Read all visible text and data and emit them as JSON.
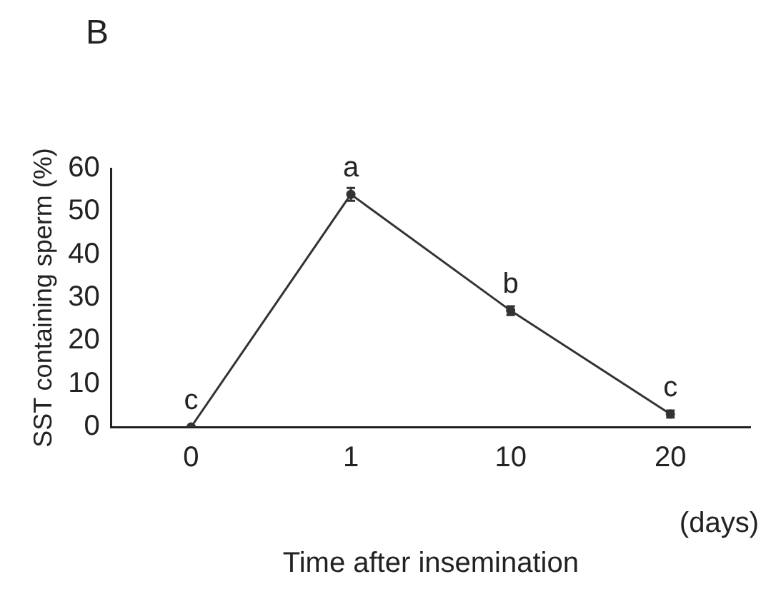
{
  "chart_data": {
    "type": "line",
    "title": "B",
    "xlabel": "Time after insemination",
    "ylabel": "SST containing sperm (%)",
    "categories": [
      "0",
      "1",
      "10",
      "20"
    ],
    "series": [
      {
        "color": "#333333",
        "values": [
          0,
          54,
          27,
          3
        ],
        "errors": [
          null,
          1.5,
          1,
          0.8
        ]
      }
    ],
    "ylim": [
      0,
      60
    ],
    "yticks": [
      0,
      10,
      20,
      30,
      40,
      50,
      60
    ],
    "grid": false,
    "legend": false,
    "marker": "circle",
    "line_style": "solid",
    "annotations": [
      {
        "text": "c",
        "x": "0",
        "y": 0
      },
      {
        "text": "a",
        "x": "1",
        "y": 54
      },
      {
        "text": "b",
        "x": "10",
        "y": 27
      },
      {
        "text": "c",
        "x": "20",
        "y": 3
      },
      "(days)"
    ]
  }
}
